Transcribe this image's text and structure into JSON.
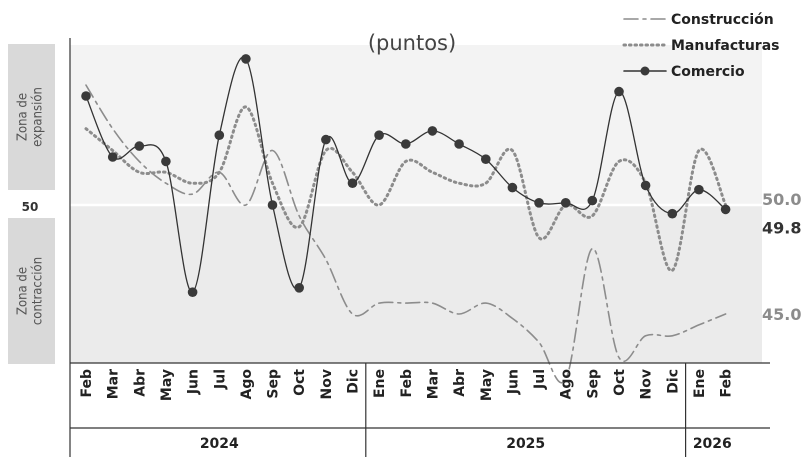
{
  "chart_data": {
    "type": "line",
    "subtitle": "(puntos)",
    "categories": [
      "Feb",
      "Mar",
      "Abr",
      "May",
      "Jun",
      "Jul",
      "Ago",
      "Sep",
      "Oct",
      "Nov",
      "Dic",
      "Ene",
      "Feb",
      "Mar",
      "Abr",
      "May",
      "Jun",
      "Jul",
      "Ago",
      "Sep",
      "Oct",
      "Nov",
      "Dic",
      "Ene",
      "Feb"
    ],
    "years": [
      {
        "label": "2024",
        "start": 0,
        "end": 10
      },
      {
        "label": "2025",
        "start": 11,
        "end": 22
      },
      {
        "label": "2026",
        "start": 23,
        "end": 24
      }
    ],
    "reference_line": 50,
    "reference_label": "50",
    "ylim": [
      41.5,
      57.2
    ],
    "zones": {
      "expansion": "Zona de\nexpansión",
      "contraction": "Zona de\ncontracción"
    },
    "series": [
      {
        "name": "Construcción",
        "style": "dashdot",
        "color": "#8c8c8c",
        "values": [
          55.5,
          53.5,
          52.0,
          51.0,
          50.5,
          51.5,
          50.0,
          52.5,
          49.5,
          47.5,
          45.0,
          45.5,
          45.5,
          45.5,
          45.0,
          45.5,
          44.8,
          43.7,
          42.0,
          48.0,
          43.0,
          44.0,
          44.0,
          44.5,
          45.0
        ],
        "end_label": "45.0"
      },
      {
        "name": "Manufacturas",
        "style": "dotted",
        "color": "#8c8c8c",
        "values": [
          53.5,
          52.5,
          51.5,
          51.5,
          51.0,
          51.5,
          54.5,
          51.0,
          49.0,
          52.5,
          51.5,
          50.0,
          52.0,
          51.5,
          51.0,
          51.0,
          52.5,
          48.5,
          50.0,
          49.5,
          52.0,
          51.0,
          47.0,
          52.5,
          50.0
        ],
        "end_label": "50.0"
      },
      {
        "name": "Comercio",
        "style": "solid-markers",
        "color": "#333333",
        "values": [
          55.0,
          52.2,
          52.7,
          52.0,
          46.0,
          53.2,
          56.7,
          50.0,
          46.2,
          53.0,
          51.0,
          53.2,
          52.8,
          53.4,
          52.8,
          52.1,
          50.8,
          50.1,
          50.1,
          50.2,
          55.2,
          50.9,
          49.6,
          50.7,
          49.8
        ],
        "end_label": "49.8"
      }
    ],
    "legend_position": "top-right"
  }
}
